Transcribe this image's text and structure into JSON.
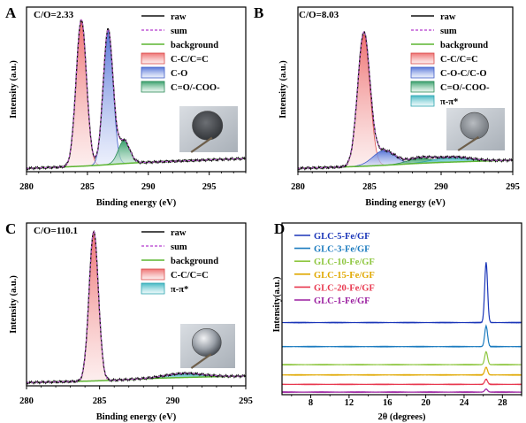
{
  "chart_data": [
    {
      "panel": "A",
      "type": "line",
      "annotation": "C/O=2.33",
      "xlabel": "Binding energy (eV)",
      "ylabel": "Intensity (a.u.)",
      "xlim": [
        280,
        298
      ],
      "xticks": [
        280,
        285,
        290,
        295
      ],
      "legend": [
        "raw",
        "sum",
        "background",
        "C-C/C=C",
        "C-O",
        "C=O/-COO-"
      ],
      "legend_position": "top-right",
      "inset": "photo of coated disk",
      "peaks": [
        {
          "name": "C-C/C=C",
          "center": 284.5,
          "height": 0.89,
          "fwhm": 1.0
        },
        {
          "name": "C-O",
          "center": 286.7,
          "height": 0.82,
          "fwhm": 0.95
        },
        {
          "name": "C=O/-COO-",
          "center": 288.0,
          "height": 0.14,
          "fwhm": 1.1
        }
      ],
      "background": {
        "start": 0.02,
        "end": 0.07
      }
    },
    {
      "panel": "B",
      "type": "line",
      "annotation": "C/O=8.03",
      "xlabel": "Binding energy (eV)",
      "ylabel": "Intensity (a.u.)",
      "xlim": [
        280,
        295
      ],
      "xticks": [
        280,
        285,
        290,
        295
      ],
      "legend": [
        "raw",
        "sum",
        "background",
        "C-C/C=C",
        "C-O-C/C-O",
        "C=O/-COO-",
        "π-π*"
      ],
      "legend_position": "top-right",
      "inset": "photo of coated disk",
      "peaks": [
        {
          "name": "C-C/C=C",
          "center": 284.6,
          "height": 0.8,
          "fwhm": 1.0
        },
        {
          "name": "C-O-C/C-O",
          "center": 286.0,
          "height": 0.09,
          "fwhm": 1.8
        },
        {
          "name": "C=O/-COO-",
          "center": 288.5,
          "height": 0.03,
          "fwhm": 2.0
        },
        {
          "name": "π-π*",
          "center": 290.8,
          "height": 0.03,
          "fwhm": 3.0
        }
      ],
      "background": {
        "start": 0.02,
        "end": 0.06
      }
    },
    {
      "panel": "C",
      "type": "line",
      "annotation": "C/O=110.1",
      "xlabel": "Binding energy (eV)",
      "ylabel": "Intensity (a.u.)",
      "xlim": [
        280,
        295
      ],
      "xticks": [
        280,
        285,
        290,
        295
      ],
      "legend": [
        "raw",
        "sum",
        "background",
        "C-C/C=C",
        "π-π*"
      ],
      "legend_position": "top-right",
      "inset": "photo of coated disk",
      "peaks": [
        {
          "name": "C-C/C=C",
          "center": 284.6,
          "height": 0.92,
          "fwhm": 0.75
        },
        {
          "name": "π-π*",
          "center": 290.8,
          "height": 0.025,
          "fwhm": 3.0
        }
      ],
      "background": {
        "start": 0.02,
        "end": 0.05
      }
    },
    {
      "panel": "D",
      "type": "line",
      "xlabel": "2θ (degrees)",
      "ylabel": "Intensity(a.u.)",
      "xlim": [
        5,
        30
      ],
      "xticks": [
        8,
        12,
        16,
        20,
        24,
        28
      ],
      "legend_position": "top-left",
      "peak_2theta": 26.3,
      "series": [
        {
          "name": "GLC-5-Fe/GF",
          "color": "#1a35b8",
          "offset": 0.42,
          "peak_height": 0.35
        },
        {
          "name": "GLC-3-Fe/GF",
          "color": "#1b7bbf",
          "offset": 0.28,
          "peak_height": 0.12
        },
        {
          "name": "GLC-10-Fe/GF",
          "color": "#8ec63f",
          "offset": 0.175,
          "peak_height": 0.075
        },
        {
          "name": "GLC-15-Fe/GF",
          "color": "#e0a800",
          "offset": 0.115,
          "peak_height": 0.045
        },
        {
          "name": "GLC-20-Fe/GF",
          "color": "#e8384f",
          "offset": 0.06,
          "peak_height": 0.03
        },
        {
          "name": "GLC-1-Fe/GF",
          "color": "#9b1fa0",
          "offset": 0.015,
          "peak_height": 0.018
        }
      ]
    }
  ]
}
